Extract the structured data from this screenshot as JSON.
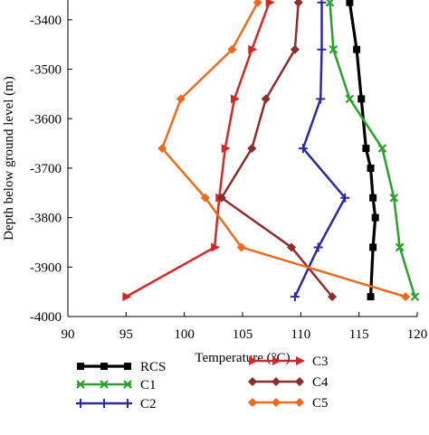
{
  "chart_data": {
    "type": "line",
    "title": "",
    "xlabel": "Temperature (°C)",
    "ylabel": "Depth below ground level (m)",
    "xlim": [
      90,
      120
    ],
    "ylim": [
      -4000,
      -3360
    ],
    "xticks": [
      90,
      95,
      100,
      105,
      110,
      115,
      120
    ],
    "xtick_labels": [
      "90",
      "95",
      "100",
      "105",
      "110",
      "115",
      "120"
    ],
    "yticks": [
      -3400,
      -3500,
      -3600,
      -3700,
      -3800,
      -3900,
      -4000
    ],
    "ytick_labels": [
      "-3400",
      "-3500",
      "-3600",
      "-3700",
      "-3800",
      "-3900",
      "-4000"
    ],
    "grid": false,
    "legend_position": "bottom",
    "series": [
      {
        "name": "RCS",
        "color": "#000000",
        "marker": "square",
        "x": [
          114.2,
          114.8,
          115.2,
          115.6,
          116.0,
          116.2,
          116.4,
          116.2,
          116.0
        ],
        "y": [
          -3365,
          -3460,
          -3560,
          -3660,
          -3700,
          -3760,
          -3800,
          -3860,
          -3960
        ]
      },
      {
        "name": "C1",
        "color": "#2ca02c",
        "marker": "x",
        "x": [
          112.5,
          112.8,
          114.2,
          117.0,
          118.0,
          118.5,
          119.8
        ],
        "y": [
          -3365,
          -3460,
          -3560,
          -3660,
          -3760,
          -3860,
          -3960
        ]
      },
      {
        "name": "C2",
        "color": "#2b2b9e",
        "marker": "plus",
        "x": [
          111.8,
          111.8,
          111.7,
          110.2,
          113.8,
          111.5,
          109.5
        ],
        "y": [
          -3365,
          -3460,
          -3560,
          -3660,
          -3760,
          -3860,
          -3960
        ]
      },
      {
        "name": "C3",
        "color": "#d62728",
        "marker": "triangle-right",
        "x": [
          107.3,
          105.8,
          104.3,
          103.5,
          103.0,
          102.6,
          95.0
        ],
        "y": [
          -3365,
          -3460,
          -3560,
          -3660,
          -3760,
          -3860,
          -3960
        ]
      },
      {
        "name": "C4",
        "color": "#8b2e2e",
        "marker": "diamond",
        "x": [
          109.8,
          109.5,
          107.0,
          105.8,
          103.2,
          109.2,
          112.7
        ],
        "y": [
          -3365,
          -3460,
          -3560,
          -3660,
          -3760,
          -3860,
          -3960
        ]
      },
      {
        "name": "C5",
        "color": "#ec6b1e",
        "marker": "diamond",
        "x": [
          106.3,
          104.1,
          99.7,
          98.1,
          101.8,
          104.9,
          119.0
        ],
        "y": [
          -3365,
          -3460,
          -3560,
          -3660,
          -3760,
          -3860,
          -3960
        ]
      }
    ]
  }
}
